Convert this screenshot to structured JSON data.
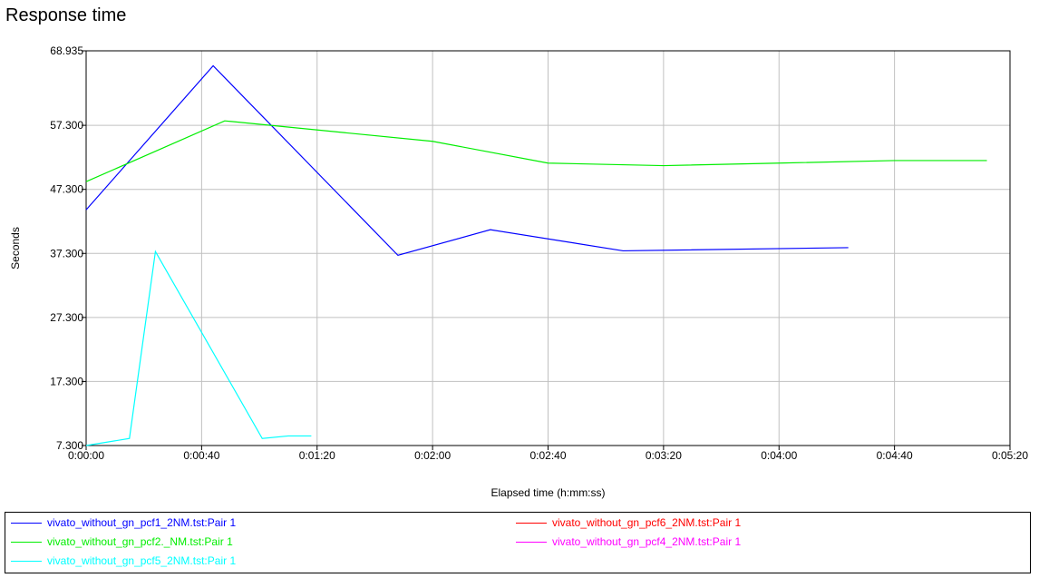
{
  "chart_data": {
    "type": "line",
    "title": "Response time",
    "xlabel": "Elapsed time (h:mm:ss)",
    "ylabel": "Seconds",
    "xlim": [
      0,
      320
    ],
    "ylim": [
      7.3,
      68.935
    ],
    "x_ticks": [
      {
        "value": 0,
        "label": "0:00:00"
      },
      {
        "value": 40,
        "label": "0:00:40"
      },
      {
        "value": 80,
        "label": "0:01:20"
      },
      {
        "value": 120,
        "label": "0:02:00"
      },
      {
        "value": 160,
        "label": "0:02:40"
      },
      {
        "value": 200,
        "label": "0:03:20"
      },
      {
        "value": 240,
        "label": "0:04:00"
      },
      {
        "value": 280,
        "label": "0:04:40"
      },
      {
        "value": 320,
        "label": "0:05:20"
      }
    ],
    "y_ticks": [
      {
        "value": 7.3,
        "label": "7.300"
      },
      {
        "value": 17.3,
        "label": "17.300"
      },
      {
        "value": 27.3,
        "label": "27.300"
      },
      {
        "value": 37.3,
        "label": "37.300"
      },
      {
        "value": 47.3,
        "label": "47.300"
      },
      {
        "value": 57.3,
        "label": "57.300"
      },
      {
        "value": 68.935,
        "label": "68.935"
      }
    ],
    "grid": true,
    "legend_position": "bottom",
    "series": [
      {
        "name": "vivato_without_gn_pcf1_2NM.tst:Pair 1",
        "color": "#0000ff",
        "x": [
          0,
          44,
          108,
          140,
          186,
          264
        ],
        "y": [
          44.1,
          66.6,
          37.0,
          41.0,
          37.7,
          38.2
        ]
      },
      {
        "name": "vivato_without_gn_pcf2._NM.tst:Pair 1",
        "color": "#00ee00",
        "x": [
          0,
          48,
          120,
          160,
          200,
          240,
          280,
          312
        ],
        "y": [
          48.5,
          58.0,
          54.8,
          51.4,
          51.0,
          51.4,
          51.8,
          51.8
        ]
      },
      {
        "name": "vivato_without_gn_pcf5_2NM.tst:Pair 1",
        "color": "#00ffff",
        "x": [
          0,
          15,
          24,
          61,
          70,
          78
        ],
        "y": [
          7.3,
          8.4,
          37.6,
          8.4,
          8.8,
          8.8
        ]
      },
      {
        "name": "vivato_without_gn_pcf6_2NM.tst:Pair 1",
        "color": "#ff0000",
        "x": [],
        "y": []
      },
      {
        "name": "vivato_without_gn_pcf4_2NM.tst:Pair 1",
        "color": "#ff00ff",
        "x": [],
        "y": []
      }
    ]
  }
}
